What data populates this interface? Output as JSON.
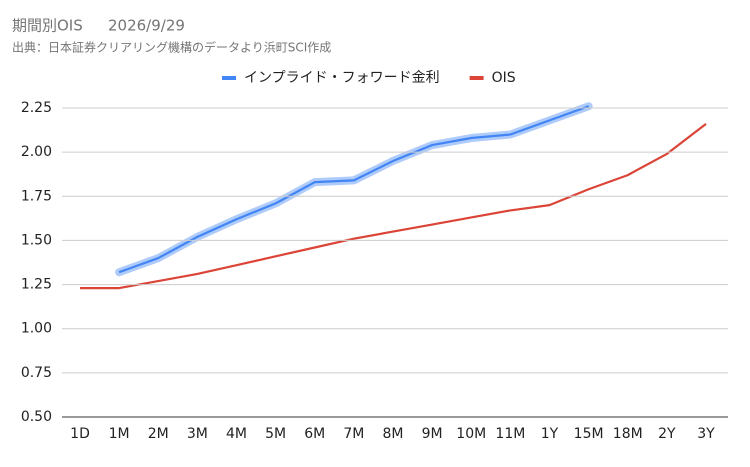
{
  "chart_data": {
    "type": "line",
    "title": "期間別OIS",
    "date": "2026/9/29",
    "subtitle": "出典：日本証券クリアリング機構のデータより浜町SCI作成",
    "categories": [
      "1D",
      "1M",
      "2M",
      "3M",
      "4M",
      "5M",
      "6M",
      "7M",
      "8M",
      "9M",
      "10M",
      "11M",
      "1Y",
      "15M",
      "18M",
      "2Y",
      "3Y"
    ],
    "series": [
      {
        "name": "インプライド・フォワード金利",
        "color": "#4285f4",
        "halo": "#aecbfa",
        "values": [
          null,
          1.32,
          1.4,
          1.52,
          1.62,
          1.71,
          1.83,
          1.84,
          1.95,
          2.04,
          2.08,
          2.1,
          2.18,
          2.26,
          null,
          null,
          null
        ]
      },
      {
        "name": "OIS",
        "color": "#db4437",
        "values": [
          1.23,
          1.23,
          1.27,
          1.31,
          1.36,
          1.41,
          1.46,
          1.51,
          1.55,
          1.59,
          1.63,
          1.67,
          1.7,
          1.79,
          1.87,
          1.99,
          2.16
        ]
      }
    ],
    "ylim": [
      0.5,
      2.25
    ],
    "yticks": [
      {
        "value": 0.5,
        "label": "0.50"
      },
      {
        "value": 0.75,
        "label": "0.75"
      },
      {
        "value": 1,
        "label": "1.00"
      },
      {
        "value": 1.25,
        "label": "1.25"
      },
      {
        "value": 1.5,
        "label": "1.50"
      },
      {
        "value": 1.75,
        "label": "1.75"
      },
      {
        "value": 2,
        "label": "2.00"
      },
      {
        "value": 2.25,
        "label": "2.25"
      }
    ],
    "grid": true,
    "legend": "top"
  }
}
